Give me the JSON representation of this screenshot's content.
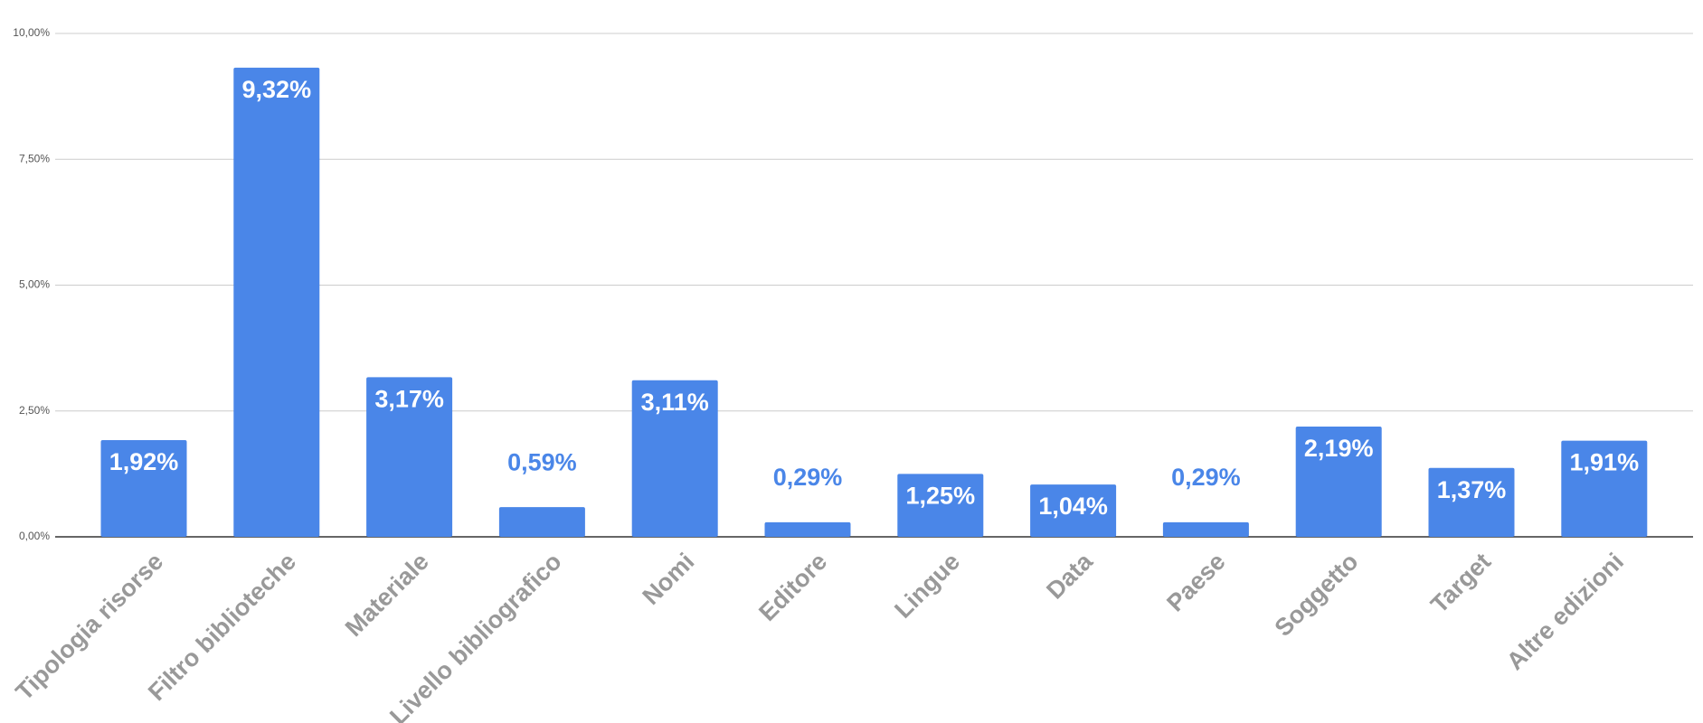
{
  "chart_data": {
    "type": "bar",
    "categories": [
      "Tipologia risorse",
      "Filtro biblioteche",
      "Materiale",
      "Livello bibliografico",
      "Nomi",
      "Editore",
      "Lingue",
      "Data",
      "Paese",
      "Soggetto",
      "Target",
      "Altre edizioni"
    ],
    "values": [
      1.92,
      9.32,
      3.17,
      0.59,
      3.11,
      0.29,
      1.25,
      1.04,
      0.29,
      2.19,
      1.37,
      1.91
    ],
    "value_labels": [
      "1,92%",
      "9,32%",
      "3,17%",
      "0,59%",
      "3,11%",
      "0,29%",
      "1,25%",
      "1,04%",
      "0,29%",
      "2,19%",
      "1,37%",
      "1,91%"
    ],
    "color": "#4a86e8",
    "ylim": [
      0,
      10
    ],
    "yticks": [
      {
        "value": 0,
        "label": "0,00%"
      },
      {
        "value": 2.5,
        "label": "2,50%"
      },
      {
        "value": 5,
        "label": "5,00%"
      },
      {
        "value": 7.5,
        "label": "7,50%"
      },
      {
        "value": 10,
        "label": "10,00%"
      }
    ],
    "grid": true
  }
}
